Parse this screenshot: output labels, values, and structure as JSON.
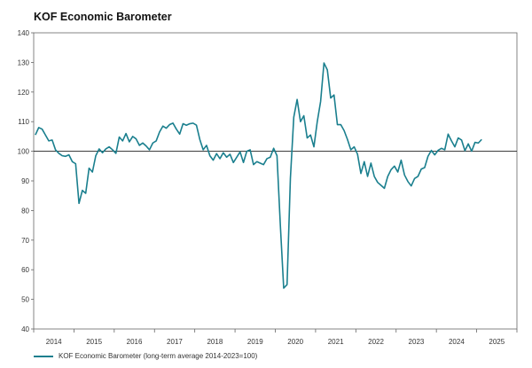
{
  "chart_data": {
    "type": "line",
    "title": "KOF Economic Barometer",
    "xlabel": "",
    "ylabel": "",
    "ylim": [
      40,
      140
    ],
    "yticks": [
      40,
      50,
      60,
      70,
      80,
      90,
      100,
      110,
      120,
      130,
      140
    ],
    "reference_line": 100,
    "x_years": [
      "2014",
      "2015",
      "2016",
      "2017",
      "2018",
      "2019",
      "2020",
      "2021",
      "2022",
      "2023",
      "2024",
      "2025"
    ],
    "grid": false,
    "legend_position": "bottom-left",
    "series": [
      {
        "name": "KOF Economic Barometer (long-term average 2014-2023=100)",
        "color": "#1a7f8e",
        "start": "2014-01",
        "frequency": "monthly",
        "values": [
          105.5,
          108.0,
          107.5,
          105.5,
          103.5,
          103.8,
          100.5,
          99.3,
          98.5,
          98.3,
          98.8,
          96.5,
          95.8,
          82.4,
          86.8,
          85.8,
          94.3,
          93.0,
          98.5,
          100.8,
          99.5,
          100.8,
          101.5,
          100.5,
          99.3,
          104.8,
          103.5,
          106.0,
          103.2,
          105.0,
          104.2,
          102.0,
          102.8,
          101.8,
          100.5,
          102.8,
          103.5,
          106.5,
          108.5,
          107.8,
          109.0,
          109.5,
          107.5,
          105.8,
          109.3,
          108.8,
          109.3,
          109.5,
          108.8,
          104.0,
          100.5,
          102.0,
          98.5,
          97.0,
          99.2,
          97.5,
          99.5,
          98.0,
          99.0,
          96.2,
          98.0,
          99.8,
          96.2,
          100.0,
          100.5,
          95.5,
          96.5,
          96.0,
          95.5,
          97.5,
          98.0,
          101.0,
          98.5,
          75.0,
          53.8,
          55.0,
          91.0,
          111.5,
          117.5,
          110.0,
          112.0,
          104.5,
          105.5,
          101.5,
          110.0,
          116.8,
          129.8,
          127.5,
          118.0,
          119.0,
          109.0,
          109.0,
          107.0,
          104.0,
          100.5,
          101.5,
          99.0,
          92.5,
          96.5,
          91.5,
          96.0,
          91.5,
          89.5,
          88.5,
          87.5,
          91.5,
          93.8,
          95.0,
          93.0,
          97.0,
          92.0,
          89.8,
          88.3,
          90.8,
          91.5,
          94.0,
          94.5,
          98.3,
          100.3,
          98.8,
          100.3,
          101.0,
          100.5,
          105.8,
          103.5,
          101.5,
          104.5,
          103.8,
          100.2,
          102.5,
          100.0,
          103.0,
          102.8,
          104.0
        ]
      }
    ]
  }
}
